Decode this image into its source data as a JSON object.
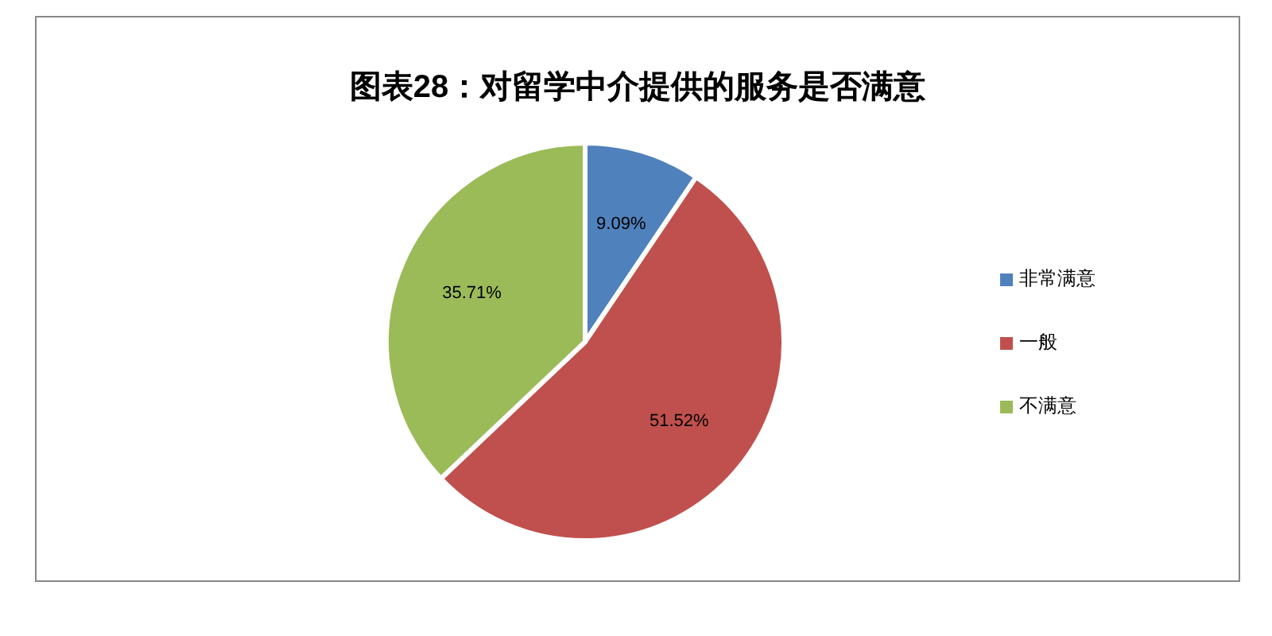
{
  "chart_data": {
    "type": "pie",
    "title": "图表28：对留学中介提供的服务是否满意",
    "categories": [
      "非常满意",
      "一般",
      "不满意"
    ],
    "values": [
      9.09,
      51.52,
      35.71
    ],
    "colors": [
      "#4f81bd",
      "#c0504d",
      "#9bbb59"
    ],
    "value_labels": [
      "9.09%",
      "51.52%",
      "35.71%"
    ],
    "legend": "right"
  }
}
